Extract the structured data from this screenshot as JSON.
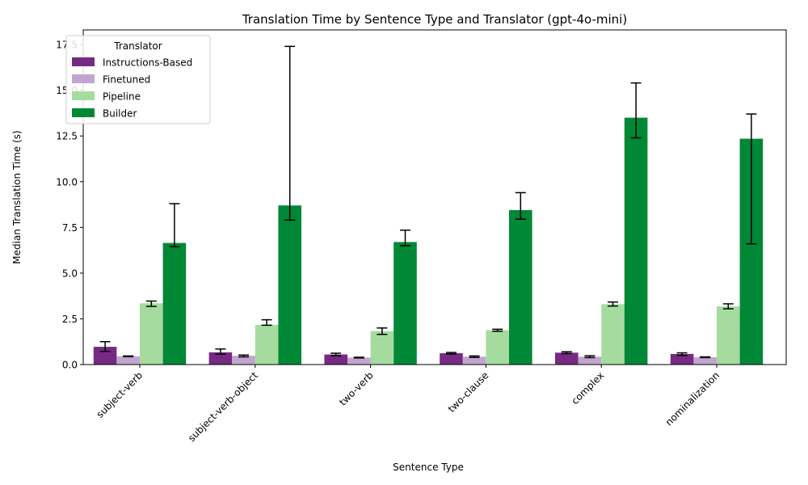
{
  "chart_data": {
    "type": "bar",
    "title": "Translation Time by Sentence Type and Translator (gpt-4o-mini)",
    "xlabel": "Sentence Type",
    "ylabel": "Median Translation Time (s)",
    "ylim": [
      0,
      18.3
    ],
    "yticks": [
      "0.0",
      "2.5",
      "5.0",
      "7.5",
      "10.0",
      "12.5",
      "15.0",
      "17.5"
    ],
    "ytick_values": [
      0,
      2.5,
      5,
      7.5,
      10,
      12.5,
      15,
      17.5
    ],
    "categories": [
      "subject-verb",
      "subject-verb-object",
      "two-verb",
      "two-clause",
      "complex",
      "nominalization"
    ],
    "legend_title": "Translator",
    "legend_position": "top-left",
    "grid": false,
    "series": [
      {
        "name": "Instructions-Based",
        "color": "#762a83",
        "values": [
          0.97,
          0.67,
          0.55,
          0.62,
          0.65,
          0.58
        ],
        "err_low": [
          0.72,
          0.57,
          0.48,
          0.58,
          0.6,
          0.5
        ],
        "err_high": [
          1.25,
          0.85,
          0.62,
          0.66,
          0.7,
          0.64
        ]
      },
      {
        "name": "Finetuned",
        "color": "#c2a5cf",
        "values": [
          0.45,
          0.48,
          0.38,
          0.43,
          0.43,
          0.4
        ],
        "err_low": [
          0.43,
          0.42,
          0.36,
          0.39,
          0.38,
          0.38
        ],
        "err_high": [
          0.47,
          0.52,
          0.4,
          0.47,
          0.48,
          0.42
        ]
      },
      {
        "name": "Pipeline",
        "color": "#a6dba0",
        "values": [
          3.35,
          2.17,
          1.83,
          1.88,
          3.3,
          3.18
        ],
        "err_low": [
          3.18,
          2.15,
          1.65,
          1.82,
          3.2,
          3.05
        ],
        "err_high": [
          3.47,
          2.45,
          2.0,
          1.93,
          3.42,
          3.32
        ]
      },
      {
        "name": "Builder",
        "color": "#008837",
        "values": [
          6.65,
          8.7,
          6.7,
          8.45,
          13.5,
          12.35
        ],
        "err_low": [
          6.45,
          7.9,
          6.5,
          7.95,
          12.4,
          6.6
        ],
        "err_high": [
          8.8,
          17.4,
          7.35,
          9.4,
          15.4,
          13.7
        ]
      }
    ]
  }
}
